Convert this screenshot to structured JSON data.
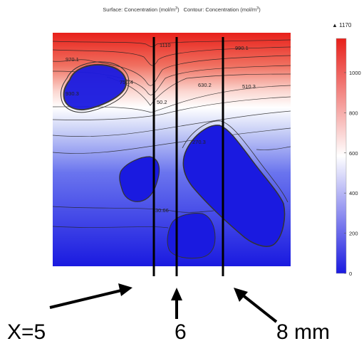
{
  "title": {
    "surface": "Surface: Concentration (mol/m",
    "contour": "Contour: Concentration (mol/m",
    "exp": "3",
    "close": ")"
  },
  "chart_data": {
    "type": "heatmap",
    "colorbar": {
      "max_label": "▲ 1170",
      "min_value": 0,
      "max_value": 1170,
      "ticks": [
        0,
        200,
        400,
        600,
        800,
        1000
      ],
      "colors": {
        "high": "#e8201a",
        "mid": "#ffffff",
        "low": "#1a1ae0"
      }
    },
    "contour_labels": [
      "1110",
      "990.1",
      "970.1",
      "930.3",
      "750.4",
      "630.2",
      "510.3",
      "50.2",
      "270.3",
      "30.66"
    ],
    "vertical_lines": [
      "X=5",
      "6",
      "8 mm"
    ]
  },
  "annotations": {
    "x5": "X=5",
    "x6": "6",
    "x8": "8 mm"
  }
}
